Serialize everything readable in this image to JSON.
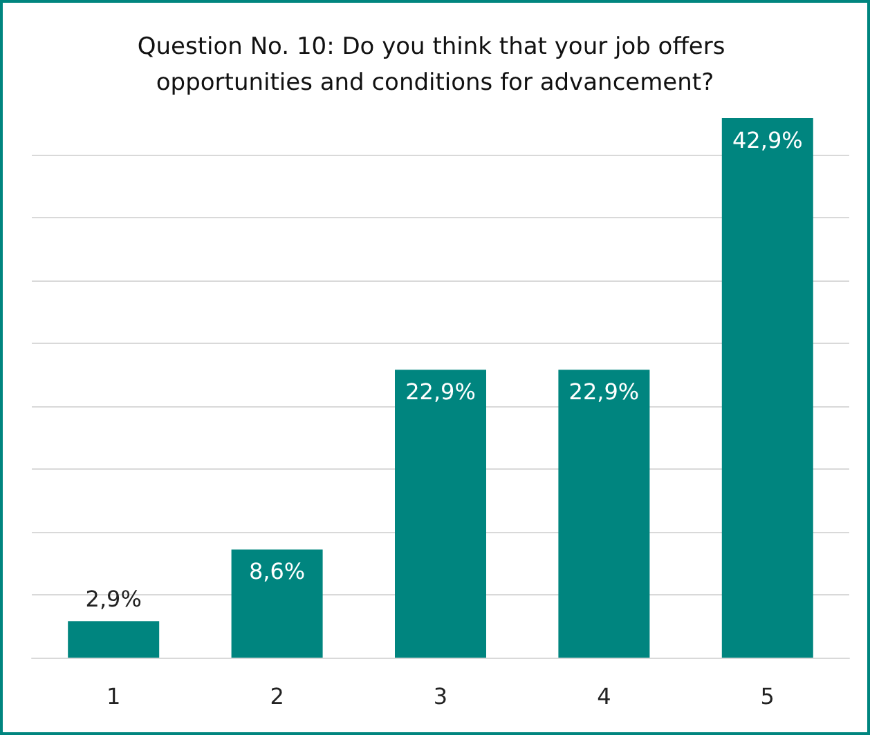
{
  "chart_data": {
    "type": "bar",
    "title": "Question No. 10: Do you think that your job offers opportunities and conditions for advancement?",
    "categories": [
      "1",
      "2",
      "3",
      "4",
      "5"
    ],
    "values": [
      2.9,
      8.6,
      22.9,
      22.9,
      42.9
    ],
    "value_labels": [
      "2,9%",
      "8,6%",
      "22,9%",
      "22,9%",
      "42,9%"
    ],
    "color": "#00857f",
    "yticks": [
      {
        "value": 0,
        "label": null
      },
      {
        "value": 5,
        "label": null
      },
      {
        "value": 10,
        "label": null
      },
      {
        "value": 15,
        "label": null
      },
      {
        "value": 20,
        "label": null
      },
      {
        "value": 25,
        "label": null
      },
      {
        "value": 30,
        "label": null
      },
      {
        "value": 35,
        "label": null
      },
      {
        "value": 40,
        "label": null
      }
    ],
    "grid": "y",
    "tick_labels": "x"
  }
}
